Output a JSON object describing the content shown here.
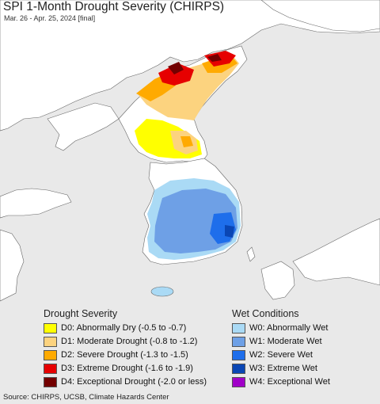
{
  "title": "SPI 1-Month Drought Severity (CHIRPS)",
  "subtitle": "Mar. 26 - Apr. 25, 2024 [final]",
  "legend": {
    "drought": {
      "title": "Drought Severity",
      "items": [
        {
          "label": "D0: Abnormally Dry (-0.5 to -0.7)",
          "color": "#ffff00"
        },
        {
          "label": "D1: Moderate Drought (-0.8 to -1.2)",
          "color": "#fcd37f"
        },
        {
          "label": "D2: Severe Drought (-1.3 to -1.5)",
          "color": "#ffaa00"
        },
        {
          "label": "D3: Extreme Drought (-1.6 to -1.9)",
          "color": "#e60000"
        },
        {
          "label": "D4: Exceptional Drought (-2.0 or less)",
          "color": "#730000"
        }
      ]
    },
    "wet": {
      "title": "Wet Conditions",
      "items": [
        {
          "label": "W0: Abnormally Wet",
          "color": "#aadaf5"
        },
        {
          "label": "W1: Moderate Wet",
          "color": "#6ea0e6"
        },
        {
          "label": "W2: Severe Wet",
          "color": "#1e6eeb"
        },
        {
          "label": "W3: Extreme Wet",
          "color": "#0a46b4"
        },
        {
          "label": "W4: Exceptional Wet",
          "color": "#a000c8"
        }
      ]
    }
  },
  "source": "Source: CHIRPS, UCSB, Climate Hazards Center"
}
